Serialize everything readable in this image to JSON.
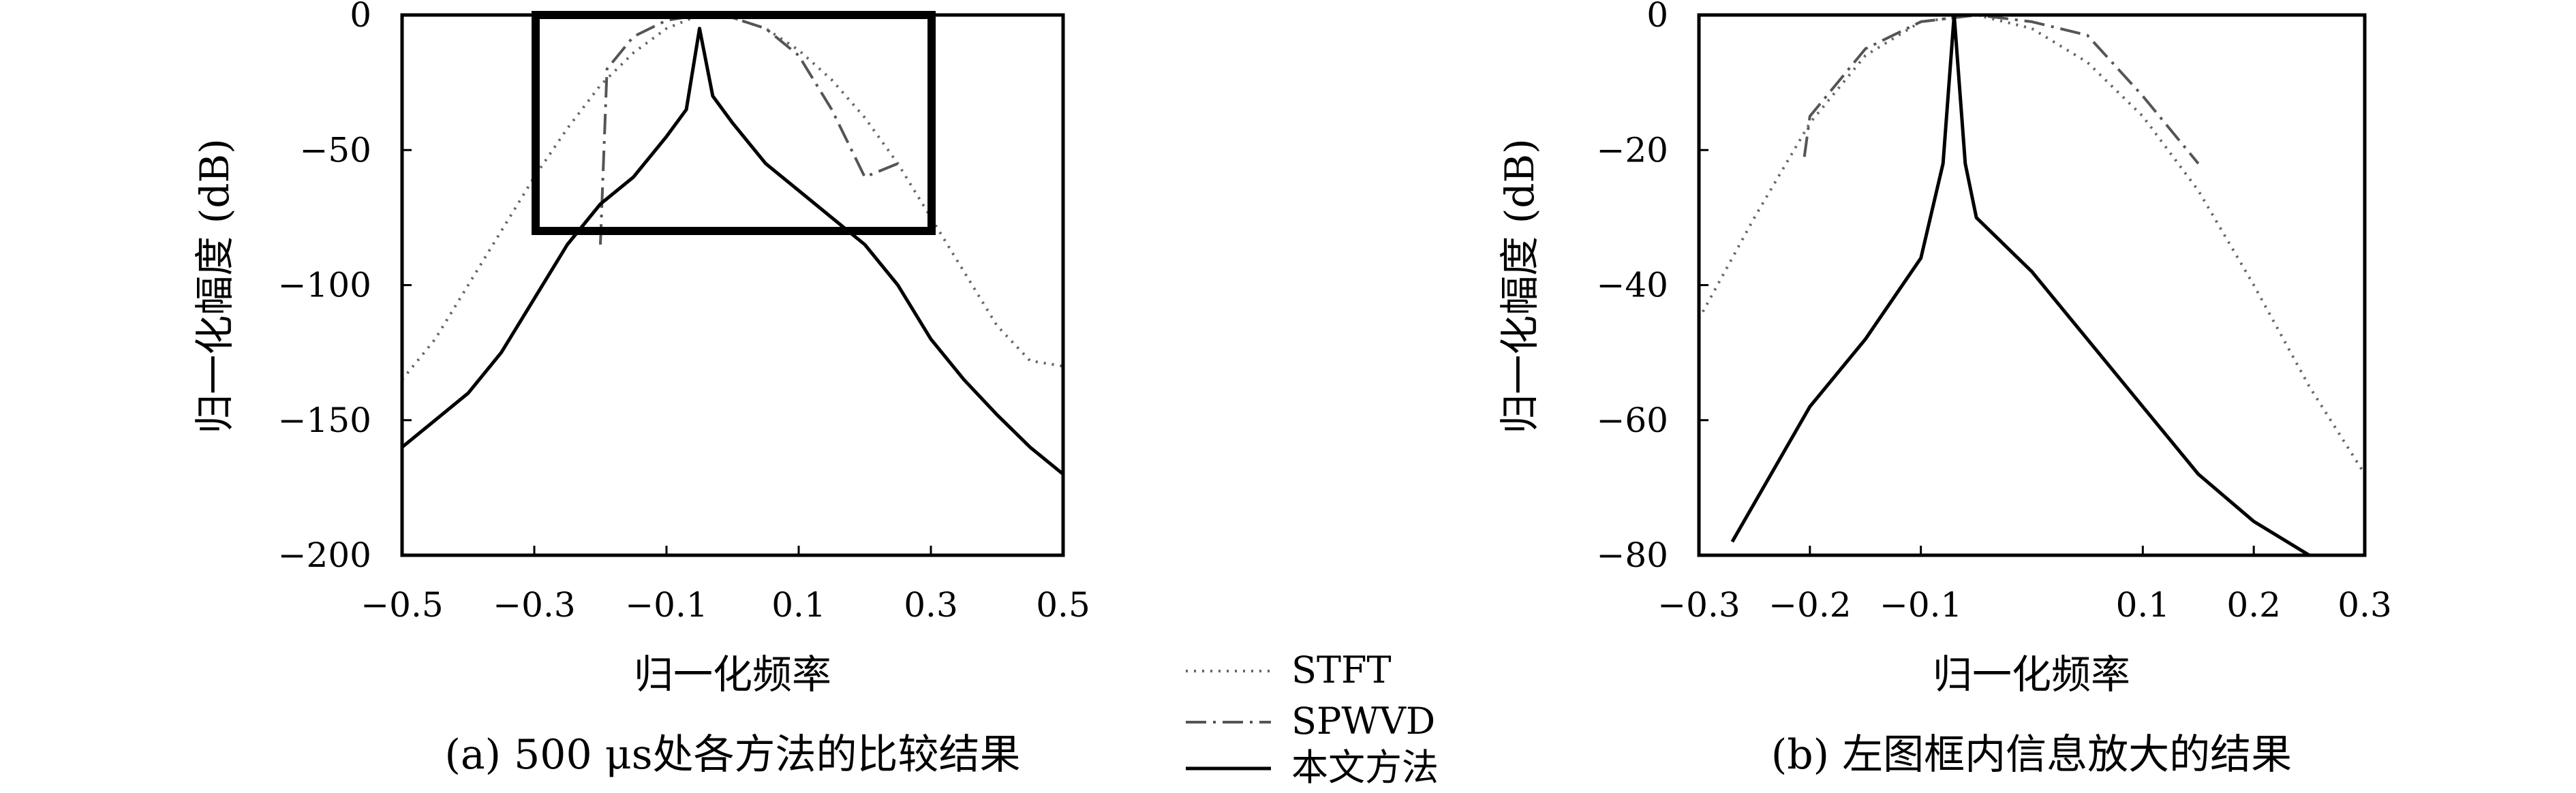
{
  "figure": {
    "legend": {
      "items": [
        {
          "label": "STFT",
          "style": "dotted",
          "color": "#666666"
        },
        {
          "label": "SPWVD",
          "style": "dashdot",
          "color": "#555555"
        },
        {
          "label": "本文方法",
          "style": "solid",
          "color": "#000000"
        }
      ]
    }
  },
  "chart_data": [
    {
      "type": "line",
      "caption": "(a) 500 μs处各方法的比较结果",
      "xlabel": "归一化频率",
      "ylabel": "归一化幅度 (dB)",
      "xlim": [
        -0.5,
        0.5
      ],
      "ylim": [
        -200,
        0
      ],
      "xticks": [
        -0.5,
        -0.3,
        -0.1,
        0.1,
        0.3,
        0.5
      ],
      "xtick_labels": [
        "−0.5",
        "−0.3",
        "−0.1",
        "0.1",
        "0.3",
        "0.5"
      ],
      "yticks": [
        0,
        -50,
        -100,
        -150,
        -200
      ],
      "ytick_labels": [
        "0",
        "−50",
        "−100",
        "−150",
        "−200"
      ],
      "grid": false,
      "annotation": {
        "type": "rectangle",
        "x_range": [
          -0.3,
          0.3
        ],
        "y_range": [
          -80,
          0
        ]
      },
      "series": [
        {
          "name": "STFT",
          "x": [
            -0.5,
            -0.45,
            -0.4,
            -0.35,
            -0.3,
            -0.25,
            -0.2,
            -0.15,
            -0.1,
            -0.05,
            0.0,
            0.05,
            0.1,
            0.15,
            0.2,
            0.25,
            0.3,
            0.35,
            0.4,
            0.45,
            0.5
          ],
          "y": [
            -135,
            -120,
            -100,
            -80,
            -60,
            -42,
            -26,
            -14,
            -5,
            0,
            -1,
            -5,
            -13,
            -24,
            -38,
            -55,
            -75,
            -95,
            -115,
            -128,
            -130
          ]
        },
        {
          "name": "SPWVD",
          "x": [
            -0.2,
            -0.19,
            -0.15,
            -0.1,
            -0.05,
            0.0,
            0.05,
            0.1,
            0.15,
            0.2,
            0.25
          ],
          "y": [
            -85,
            -20,
            -8,
            -2,
            0,
            -1,
            -5,
            -15,
            -35,
            -60,
            -55
          ]
        },
        {
          "name": "本文方法",
          "x": [
            -0.5,
            -0.45,
            -0.4,
            -0.35,
            -0.3,
            -0.25,
            -0.2,
            -0.15,
            -0.1,
            -0.07,
            -0.05,
            -0.03,
            0.0,
            0.05,
            0.1,
            0.15,
            0.2,
            0.25,
            0.3,
            0.35,
            0.4,
            0.45,
            0.5
          ],
          "y": [
            -160,
            -150,
            -140,
            -125,
            -105,
            -85,
            -70,
            -60,
            -45,
            -35,
            -5,
            -30,
            -40,
            -55,
            -65,
            -75,
            -85,
            -100,
            -120,
            -135,
            -148,
            -160,
            -170
          ]
        }
      ]
    },
    {
      "type": "line",
      "caption": "(b) 左图框内信息放大的结果",
      "xlabel": "归一化频率",
      "ylabel": "归一化幅度 (dB)",
      "xlim": [
        -0.3,
        0.3
      ],
      "ylim": [
        -80,
        0
      ],
      "xticks": [
        -0.3,
        -0.2,
        -0.1,
        0.1,
        0.2,
        0.3
      ],
      "xtick_labels": [
        "−0.3",
        "−0.2",
        "−0.1",
        "0.1",
        "0.2",
        "0.3"
      ],
      "yticks": [
        0,
        -20,
        -40,
        -60,
        -80
      ],
      "ytick_labels": [
        "0",
        "−20",
        "−40",
        "−60",
        "−80"
      ],
      "grid": false,
      "series": [
        {
          "name": "STFT",
          "x": [
            -0.3,
            -0.25,
            -0.2,
            -0.15,
            -0.1,
            -0.05,
            0.0,
            0.05,
            0.1,
            0.15,
            0.2,
            0.25,
            0.3
          ],
          "y": [
            -45,
            -30,
            -16,
            -6,
            -1,
            0,
            -2,
            -7,
            -15,
            -26,
            -40,
            -55,
            -68
          ]
        },
        {
          "name": "SPWVD",
          "x": [
            -0.205,
            -0.2,
            -0.15,
            -0.1,
            -0.05,
            0.0,
            0.05,
            0.1,
            0.15
          ],
          "y": [
            -21,
            -15,
            -5,
            -1,
            0,
            -1,
            -3,
            -12,
            -22
          ]
        },
        {
          "name": "本文方法",
          "x": [
            -0.27,
            -0.2,
            -0.15,
            -0.1,
            -0.08,
            -0.07,
            -0.06,
            -0.05,
            0.0,
            0.05,
            0.1,
            0.15,
            0.2,
            0.25
          ],
          "y": [
            -78,
            -58,
            -48,
            -36,
            -22,
            0,
            -22,
            -30,
            -38,
            -48,
            -58,
            -68,
            -75,
            -80
          ]
        }
      ]
    }
  ]
}
